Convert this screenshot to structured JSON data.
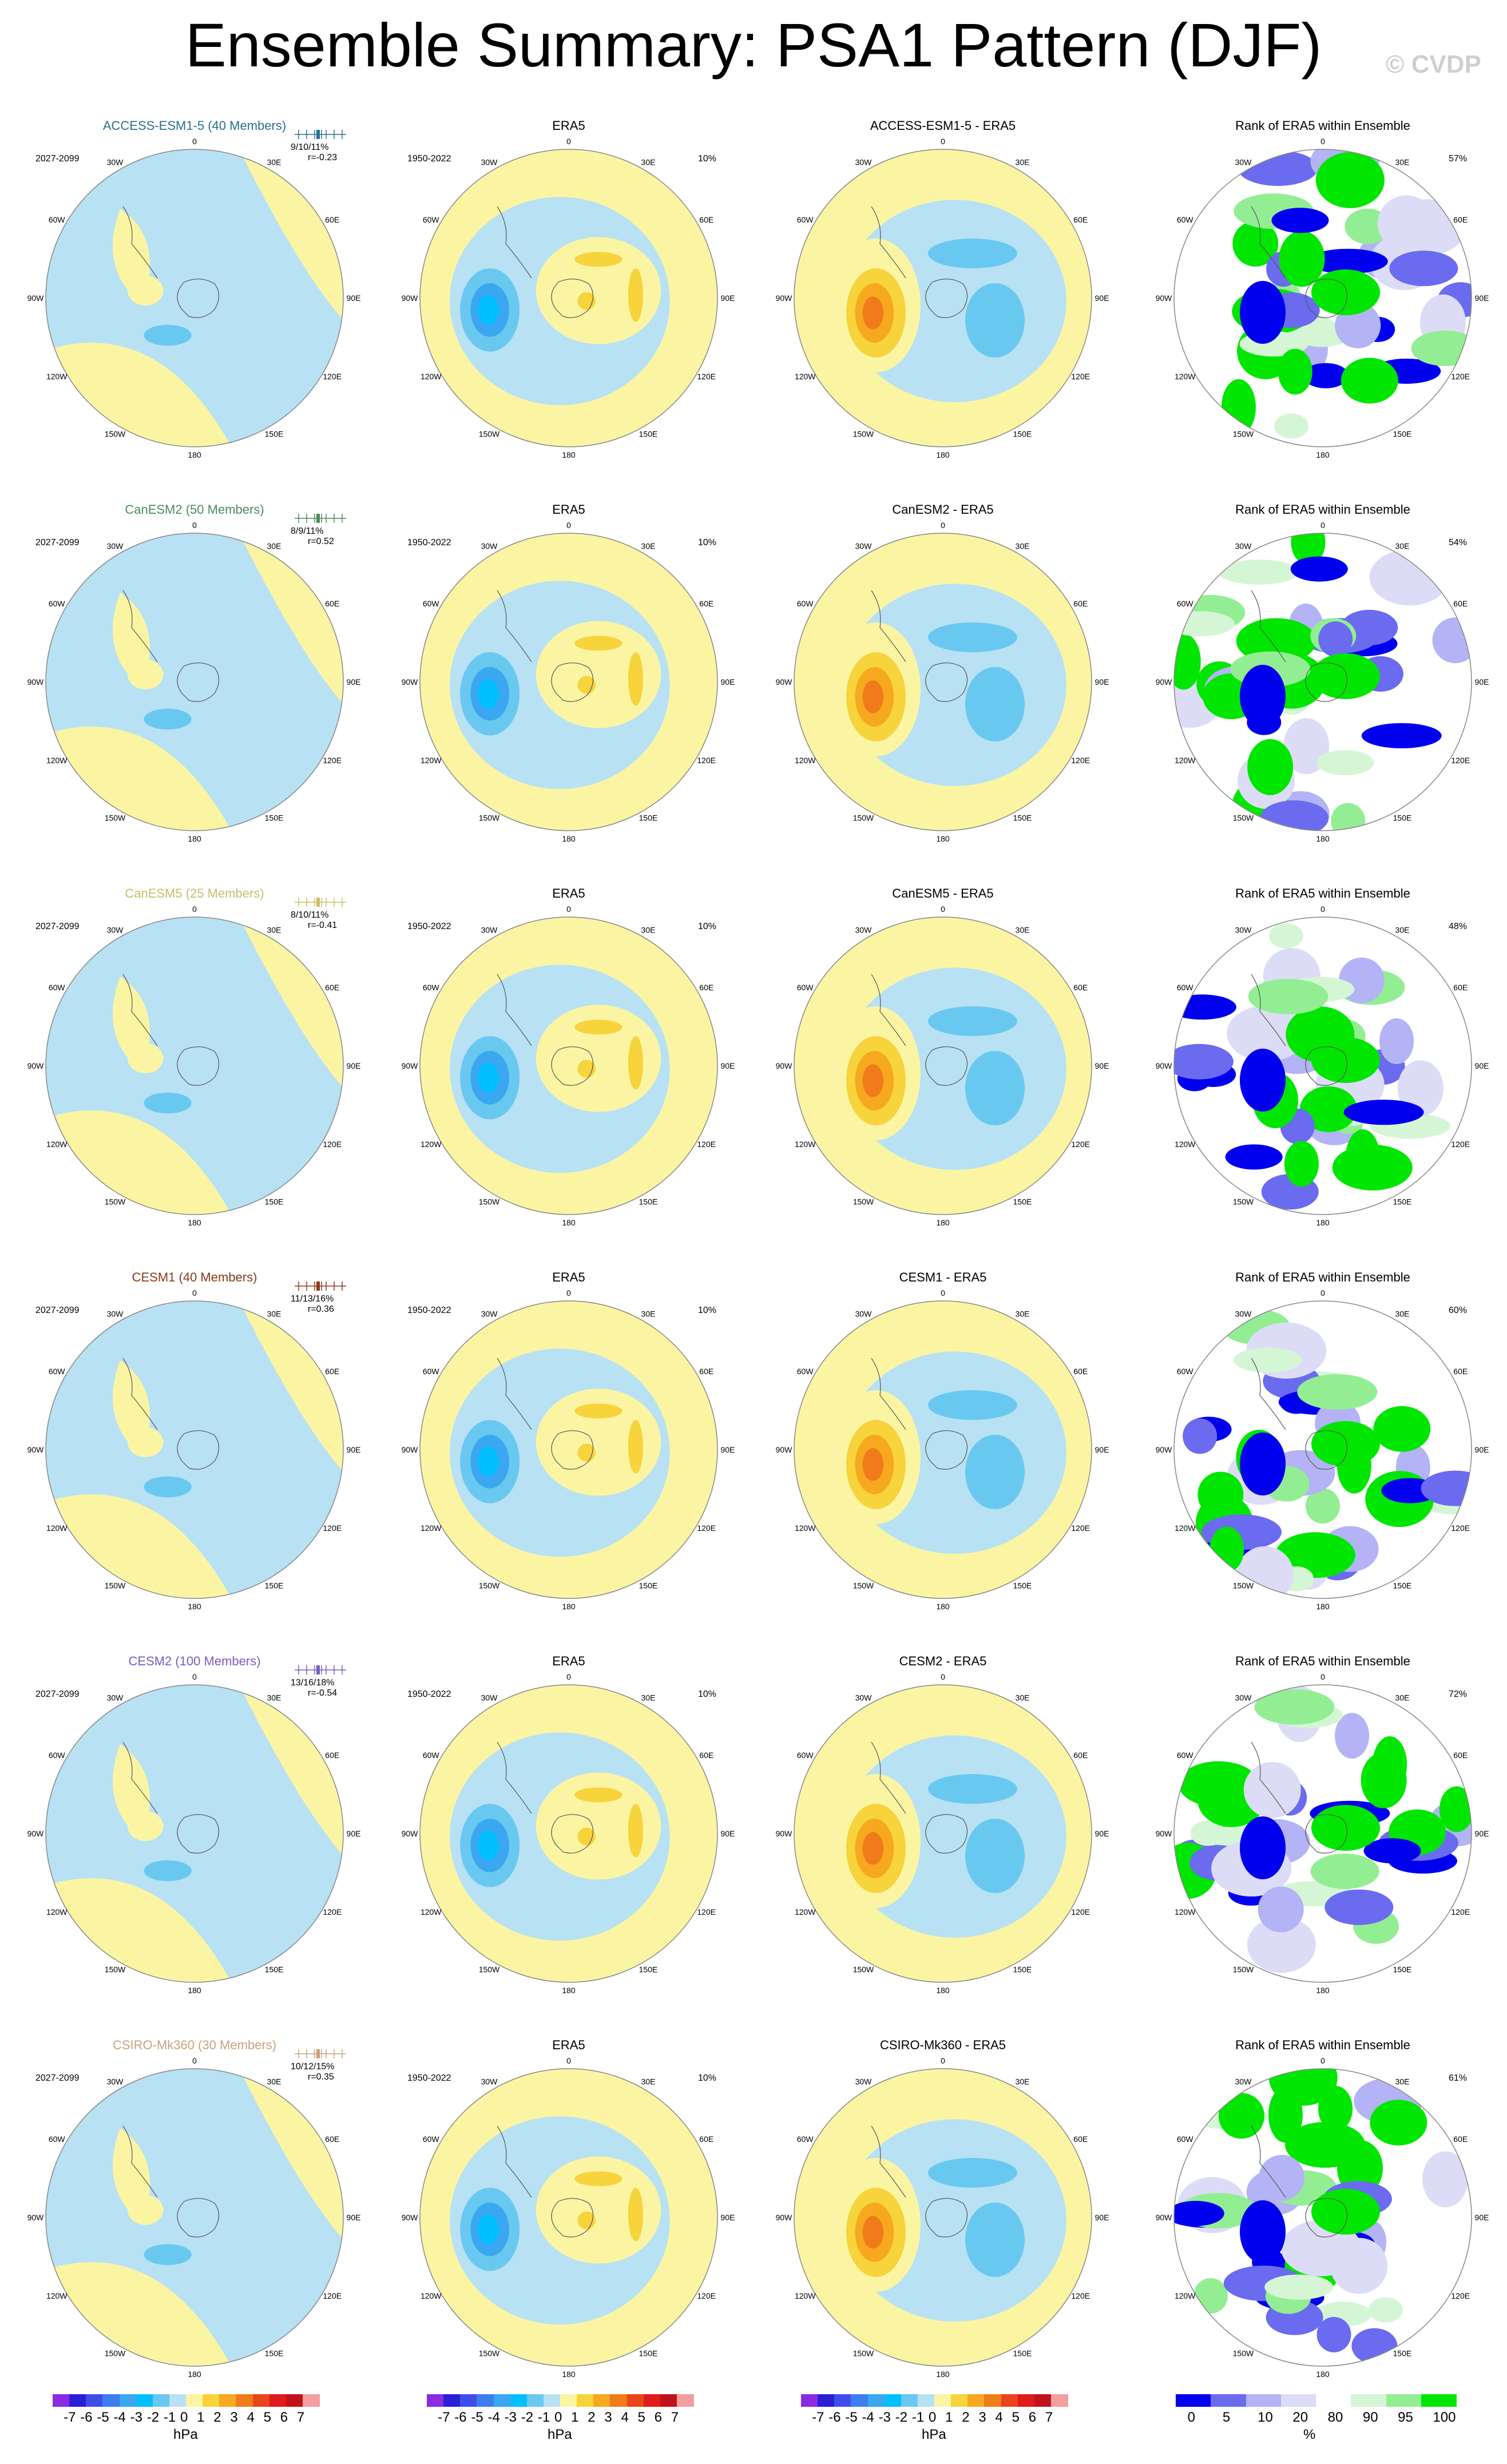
{
  "title": "Ensemble Summary: PSA1 Pattern (DJF)",
  "watermark": "© CVDP",
  "col_titles": {
    "obs": "ERA5",
    "rank": "Rank of ERA5 within Ensemble"
  },
  "obs_period": "1950-2022",
  "obs_pct": "10%",
  "lon_labels": [
    "0",
    "30E",
    "60E",
    "90E",
    "120E",
    "150E",
    "180",
    "150W",
    "120W",
    "90W",
    "60W",
    "30W"
  ],
  "rows": [
    {
      "model_title": "ACCESS-ESM1-5 (40 Members)",
      "color": "#2a6f8f",
      "period": "2027-2099",
      "pct_stats": "9/10/11%",
      "r_stat": "r=-0.23",
      "diff_title": "ACCESS-ESM1-5 - ERA5",
      "rank_pct": "57%"
    },
    {
      "model_title": "CanESM2 (50 Members)",
      "color": "#4f8a5b",
      "period": "2027-2099",
      "pct_stats": "8/9/11%",
      "r_stat": "r=0.52",
      "diff_title": "CanESM2 - ERA5",
      "rank_pct": "54%"
    },
    {
      "model_title": "CanESM5 (25 Members)",
      "color": "#c9bf6a",
      "period": "2027-2099",
      "pct_stats": "8/10/11%",
      "r_stat": "r=-0.41",
      "diff_title": "CanESM5 - ERA5",
      "rank_pct": "48%"
    },
    {
      "model_title": "CESM1 (40 Members)",
      "color": "#8a3a1c",
      "period": "2027-2099",
      "pct_stats": "11/13/16%",
      "r_stat": "r=0.36",
      "diff_title": "CESM1 - ERA5",
      "rank_pct": "60%"
    },
    {
      "model_title": "CESM2 (100 Members)",
      "color": "#7a5cc6",
      "period": "2027-2099",
      "pct_stats": "13/16/18%",
      "r_stat": "r=-0.54",
      "diff_title": "CESM2 - ERA5",
      "rank_pct": "72%"
    },
    {
      "model_title": "CSIRO-Mk360 (30 Members)",
      "color": "#c9a27a",
      "period": "2027-2099",
      "pct_stats": "10/12/15%",
      "r_stat": "r=0.35",
      "diff_title": "CSIRO-Mk360 - ERA5",
      "rank_pct": "61%"
    }
  ],
  "colorbars": {
    "hpa": {
      "labels": [
        "-7",
        "-6",
        "-5",
        "-4",
        "-3",
        "-2",
        "-1",
        "0",
        "1",
        "2",
        "3",
        "4",
        "5",
        "6",
        "7"
      ],
      "unit": "hPa",
      "colors": [
        "#8a2be2",
        "#2a1fd6",
        "#3f4ee8",
        "#3c7ef0",
        "#3aa7f0",
        "#00bfff",
        "#69c8f0",
        "#b8e1f4",
        "#fbf5a3",
        "#f7d33c",
        "#f6a81e",
        "#f07b1b",
        "#e8461a",
        "#e01b1b",
        "#c0141c",
        "#f39f9f"
      ]
    },
    "rank": {
      "labels": [
        "0",
        "5",
        "10",
        "20",
        "80",
        "90",
        "95",
        "100"
      ],
      "unit": "%",
      "colors": [
        "#0000ee",
        "#6b6bf0",
        "#b3b3f5",
        "#dcdcf7",
        "#ffffff",
        "#d5f6d5",
        "#93ee93",
        "#00e600"
      ]
    }
  },
  "fill_colors": {
    "neg": "#b8e1f4",
    "neg2": "#69c8f0",
    "neg3": "#3aa7f0",
    "neg4": "#00bfff",
    "pos": "#fbf5a3",
    "pos2": "#f7d33c",
    "pos3": "#f6a81e",
    "pos4": "#f07b1b",
    "rank_low": "#0000ee",
    "rank_high": "#00e600"
  }
}
